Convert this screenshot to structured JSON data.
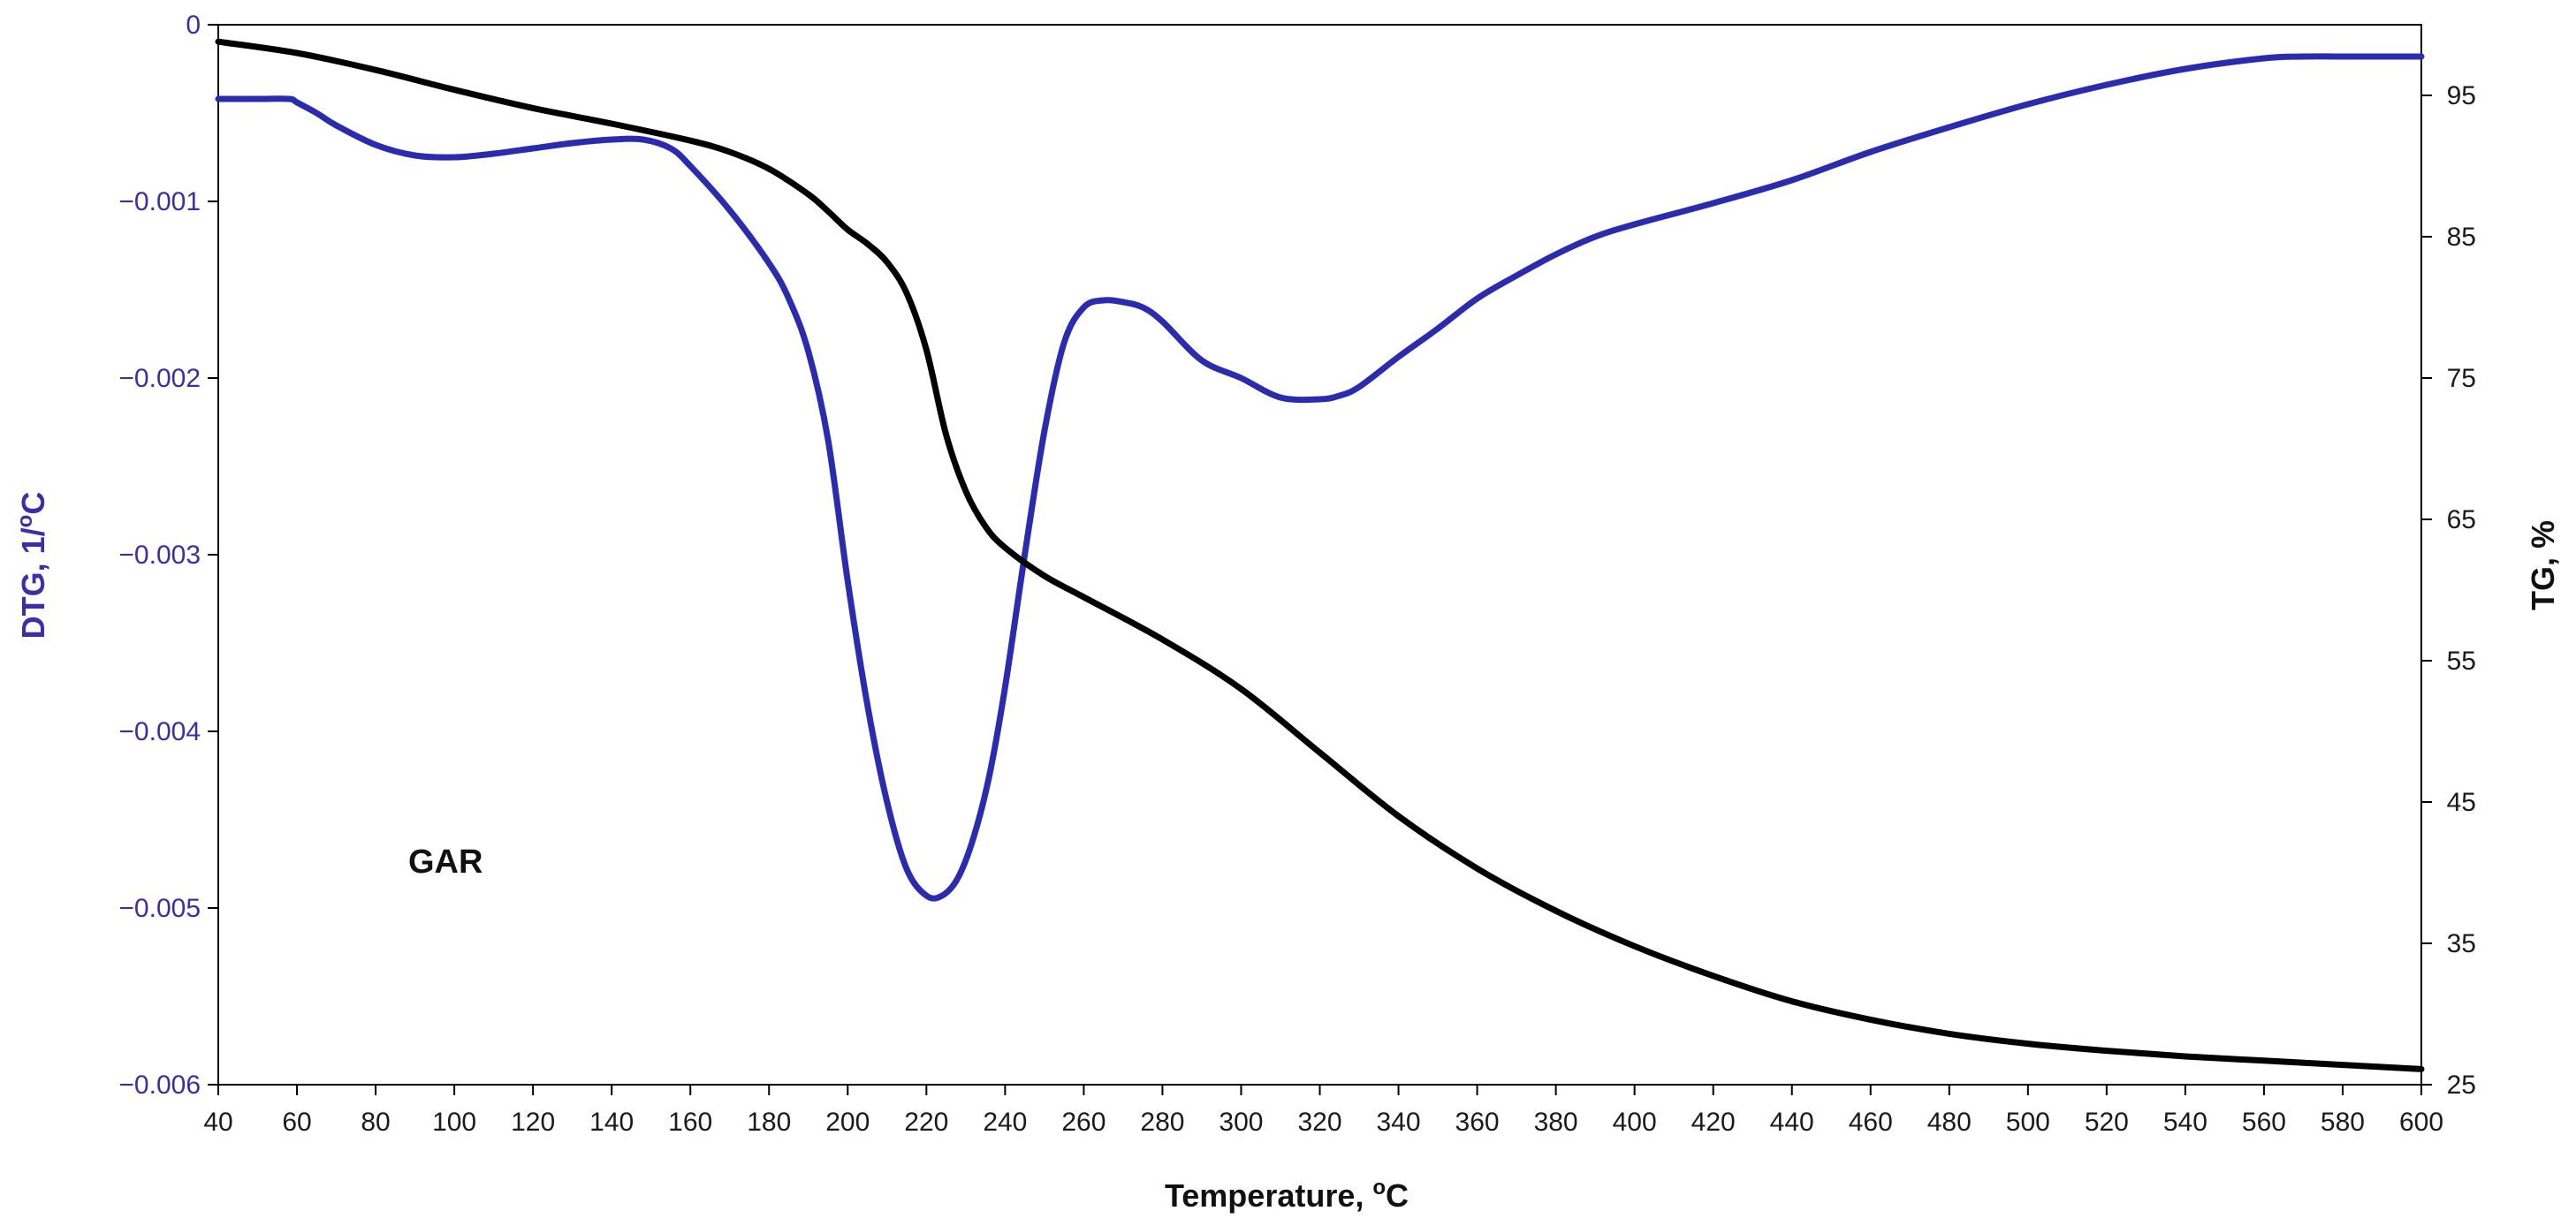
{
  "chart_data": {
    "type": "line",
    "xlabel": "Temperature, ",
    "xlabel_sup": "o",
    "xlabel_unit": "C",
    "ylabel_left": "DTG, 1/",
    "ylabel_left_sup": "o",
    "ylabel_left_unit": "C",
    "ylabel_right": "TG, %",
    "annotation": "GAR",
    "xlim": [
      40,
      600
    ],
    "ylim_left": [
      -0.006,
      0
    ],
    "ylim_right": [
      25,
      100
    ],
    "x_ticks": [
      40,
      60,
      80,
      100,
      120,
      140,
      160,
      180,
      200,
      220,
      240,
      260,
      280,
      300,
      320,
      340,
      360,
      380,
      400,
      420,
      440,
      460,
      480,
      500,
      520,
      540,
      560,
      580,
      600
    ],
    "y_left_ticks": [
      {
        "value": 0,
        "label": "0"
      },
      {
        "value": -0.001,
        "label": "−0.001"
      },
      {
        "value": -0.002,
        "label": "−0.002"
      },
      {
        "value": -0.003,
        "label": "−0.003"
      },
      {
        "value": -0.004,
        "label": "−0.004"
      },
      {
        "value": -0.005,
        "label": "−0.005"
      },
      {
        "value": -0.006,
        "label": "−0.006"
      }
    ],
    "y_right_ticks": [
      {
        "value": 95,
        "label": "95"
      },
      {
        "value": 85,
        "label": "85"
      },
      {
        "value": 75,
        "label": "75"
      },
      {
        "value": 65,
        "label": "65"
      },
      {
        "value": 55,
        "label": "55"
      },
      {
        "value": 45,
        "label": "45"
      },
      {
        "value": 35,
        "label": "35"
      },
      {
        "value": 25,
        "label": "25"
      }
    ],
    "grid": false,
    "colors": {
      "dtg": "#2b2bb0",
      "tg": "#000000",
      "left_axis_text": "#3a2fa8",
      "right_axis_text": "#1a1a1a"
    },
    "series": [
      {
        "id": "dtg",
        "axis": "left",
        "x": [
          40,
          50,
          58,
          60,
          65,
          70,
          80,
          90,
          100,
          110,
          120,
          130,
          140,
          148,
          155,
          160,
          170,
          180,
          185,
          190,
          195,
          200,
          205,
          210,
          215,
          220,
          224,
          228,
          232,
          236,
          240,
          245,
          250,
          255,
          260,
          265,
          270,
          275,
          280,
          290,
          300,
          310,
          320,
          325,
          330,
          340,
          350,
          360,
          370,
          380,
          390,
          400,
          420,
          440,
          460,
          480,
          500,
          520,
          540,
          560,
          570,
          580,
          600
        ],
        "y": [
          -0.00042,
          -0.00042,
          -0.00042,
          -0.00044,
          -0.0005,
          -0.00057,
          -0.00068,
          -0.00074,
          -0.00075,
          -0.00073,
          -0.0007,
          -0.00067,
          -0.00065,
          -0.00065,
          -0.0007,
          -0.0008,
          -0.00105,
          -0.00135,
          -0.00155,
          -0.00185,
          -0.00235,
          -0.00315,
          -0.00385,
          -0.0044,
          -0.00478,
          -0.00493,
          -0.00493,
          -0.00483,
          -0.0046,
          -0.00425,
          -0.00375,
          -0.003,
          -0.0023,
          -0.0018,
          -0.0016,
          -0.00156,
          -0.00157,
          -0.0016,
          -0.00168,
          -0.0019,
          -0.002,
          -0.00211,
          -0.00212,
          -0.0021,
          -0.00205,
          -0.00188,
          -0.00172,
          -0.00155,
          -0.00142,
          -0.0013,
          -0.0012,
          -0.00113,
          -0.00101,
          -0.00088,
          -0.00072,
          -0.00058,
          -0.00045,
          -0.00034,
          -0.00025,
          -0.00019,
          -0.00018,
          -0.00018,
          -0.00018
        ]
      },
      {
        "id": "tg",
        "axis": "right",
        "x": [
          40,
          60,
          80,
          100,
          120,
          140,
          160,
          170,
          180,
          190,
          195,
          200,
          205,
          210,
          215,
          220,
          225,
          230,
          235,
          240,
          250,
          260,
          280,
          300,
          320,
          340,
          360,
          380,
          400,
          420,
          440,
          460,
          480,
          500,
          520,
          540,
          560,
          580,
          600
        ],
        "y": [
          98.8,
          98.0,
          96.8,
          95.4,
          94.1,
          93.0,
          91.8,
          91.0,
          89.8,
          88.0,
          86.8,
          85.5,
          84.5,
          83.2,
          81.0,
          77.0,
          71.0,
          67.0,
          64.5,
          63.0,
          61.0,
          59.5,
          56.5,
          53.0,
          48.5,
          44.0,
          40.3,
          37.3,
          34.8,
          32.7,
          30.9,
          29.6,
          28.6,
          27.9,
          27.4,
          27.0,
          26.7,
          26.4,
          26.1
        ]
      }
    ]
  }
}
